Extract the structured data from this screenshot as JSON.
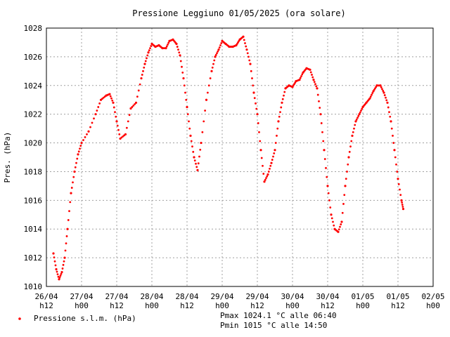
{
  "chart_data": {
    "type": "scatter",
    "title": "Pressione Leggiuno 01/05/2025 (ora solare)",
    "xlabel": "",
    "ylabel": "Pres. (hPa)",
    "ylim": [
      1010,
      1028
    ],
    "yticks": [
      1010,
      1012,
      1014,
      1016,
      1018,
      1020,
      1022,
      1024,
      1026,
      1028
    ],
    "xlim": [
      0,
      11
    ],
    "x_unit": "half-days from 26/04 h12",
    "xticks": [
      {
        "x": 0,
        "line1": "26/04",
        "line2": "h12"
      },
      {
        "x": 1,
        "line1": "27/04",
        "line2": "h00"
      },
      {
        "x": 2,
        "line1": "27/04",
        "line2": "h12"
      },
      {
        "x": 3,
        "line1": "28/04",
        "line2": "h00"
      },
      {
        "x": 4,
        "line1": "28/04",
        "line2": "h12"
      },
      {
        "x": 5,
        "line1": "29/04",
        "line2": "h00"
      },
      {
        "x": 6,
        "line1": "29/04",
        "line2": "h12"
      },
      {
        "x": 7,
        "line1": "30/04",
        "line2": "h00"
      },
      {
        "x": 8,
        "line1": "30/04",
        "line2": "h12"
      },
      {
        "x": 9,
        "line1": "01/05",
        "line2": "h00"
      },
      {
        "x": 10,
        "line1": "01/05",
        "line2": "h12"
      },
      {
        "x": 11,
        "line1": "02/05",
        "line2": "h00"
      }
    ],
    "grid": true,
    "legend_position": "bottom-left",
    "series": [
      {
        "name": "Pressione s.l.m. (hPa)",
        "color": "#ff0000",
        "points": [
          [
            0.2,
            1012.3
          ],
          [
            0.28,
            1011.2
          ],
          [
            0.36,
            1010.5
          ],
          [
            0.44,
            1011.0
          ],
          [
            0.52,
            1012.0
          ],
          [
            0.6,
            1014.0
          ],
          [
            0.7,
            1016.5
          ],
          [
            0.8,
            1018.0
          ],
          [
            0.9,
            1019.2
          ],
          [
            1.0,
            1020.0
          ],
          [
            1.2,
            1020.8
          ],
          [
            1.4,
            1022.0
          ],
          [
            1.55,
            1023.0
          ],
          [
            1.7,
            1023.3
          ],
          [
            1.8,
            1023.4
          ],
          [
            1.9,
            1022.8
          ],
          [
            2.0,
            1021.5
          ],
          [
            2.1,
            1020.3
          ],
          [
            2.25,
            1020.6
          ],
          [
            2.4,
            1022.4
          ],
          [
            2.55,
            1022.8
          ],
          [
            2.7,
            1024.5
          ],
          [
            2.8,
            1025.5
          ],
          [
            2.9,
            1026.3
          ],
          [
            3.0,
            1026.9
          ],
          [
            3.1,
            1026.7
          ],
          [
            3.2,
            1026.8
          ],
          [
            3.3,
            1026.6
          ],
          [
            3.4,
            1026.6
          ],
          [
            3.5,
            1027.1
          ],
          [
            3.6,
            1027.2
          ],
          [
            3.7,
            1026.9
          ],
          [
            3.8,
            1026.1
          ],
          [
            3.9,
            1024.5
          ],
          [
            4.0,
            1022.5
          ],
          [
            4.1,
            1020.5
          ],
          [
            4.2,
            1019.0
          ],
          [
            4.3,
            1018.1
          ],
          [
            4.4,
            1020.0
          ],
          [
            4.55,
            1023.0
          ],
          [
            4.7,
            1025.0
          ],
          [
            4.8,
            1026.0
          ],
          [
            4.9,
            1026.5
          ],
          [
            5.0,
            1027.1
          ],
          [
            5.1,
            1026.9
          ],
          [
            5.2,
            1026.7
          ],
          [
            5.3,
            1026.7
          ],
          [
            5.4,
            1026.8
          ],
          [
            5.5,
            1027.2
          ],
          [
            5.6,
            1027.4
          ],
          [
            5.7,
            1026.5
          ],
          [
            5.8,
            1025.5
          ],
          [
            5.9,
            1023.5
          ],
          [
            6.0,
            1022.0
          ],
          [
            6.1,
            1019.5
          ],
          [
            6.2,
            1017.3
          ],
          [
            6.3,
            1017.8
          ],
          [
            6.4,
            1018.6
          ],
          [
            6.5,
            1019.5
          ],
          [
            6.6,
            1021.5
          ],
          [
            6.7,
            1022.8
          ],
          [
            6.8,
            1023.8
          ],
          [
            6.9,
            1024.0
          ],
          [
            7.0,
            1023.9
          ],
          [
            7.1,
            1024.3
          ],
          [
            7.2,
            1024.4
          ],
          [
            7.3,
            1024.9
          ],
          [
            7.4,
            1025.2
          ],
          [
            7.5,
            1025.1
          ],
          [
            7.6,
            1024.4
          ],
          [
            7.7,
            1023.8
          ],
          [
            7.8,
            1022.0
          ],
          [
            7.9,
            1019.5
          ],
          [
            8.0,
            1017.0
          ],
          [
            8.1,
            1015.0
          ],
          [
            8.2,
            1014.0
          ],
          [
            8.3,
            1013.8
          ],
          [
            8.4,
            1014.5
          ],
          [
            8.5,
            1017.0
          ],
          [
            8.6,
            1019.0
          ],
          [
            8.7,
            1020.5
          ],
          [
            8.8,
            1021.5
          ],
          [
            8.9,
            1022.0
          ],
          [
            9.0,
            1022.5
          ],
          [
            9.1,
            1022.8
          ],
          [
            9.2,
            1023.1
          ],
          [
            9.3,
            1023.6
          ],
          [
            9.4,
            1024.0
          ],
          [
            9.5,
            1024.0
          ],
          [
            9.6,
            1023.5
          ],
          [
            9.7,
            1022.8
          ],
          [
            9.8,
            1021.5
          ],
          [
            9.9,
            1019.5
          ],
          [
            10.0,
            1017.5
          ],
          [
            10.1,
            1016.0
          ],
          [
            10.15,
            1015.4
          ]
        ]
      }
    ],
    "annotations": {
      "pmax": "Pmax 1024.1 °C alle 06:40",
      "pmin": "Pmin 1015 °C alle 14:50"
    }
  }
}
